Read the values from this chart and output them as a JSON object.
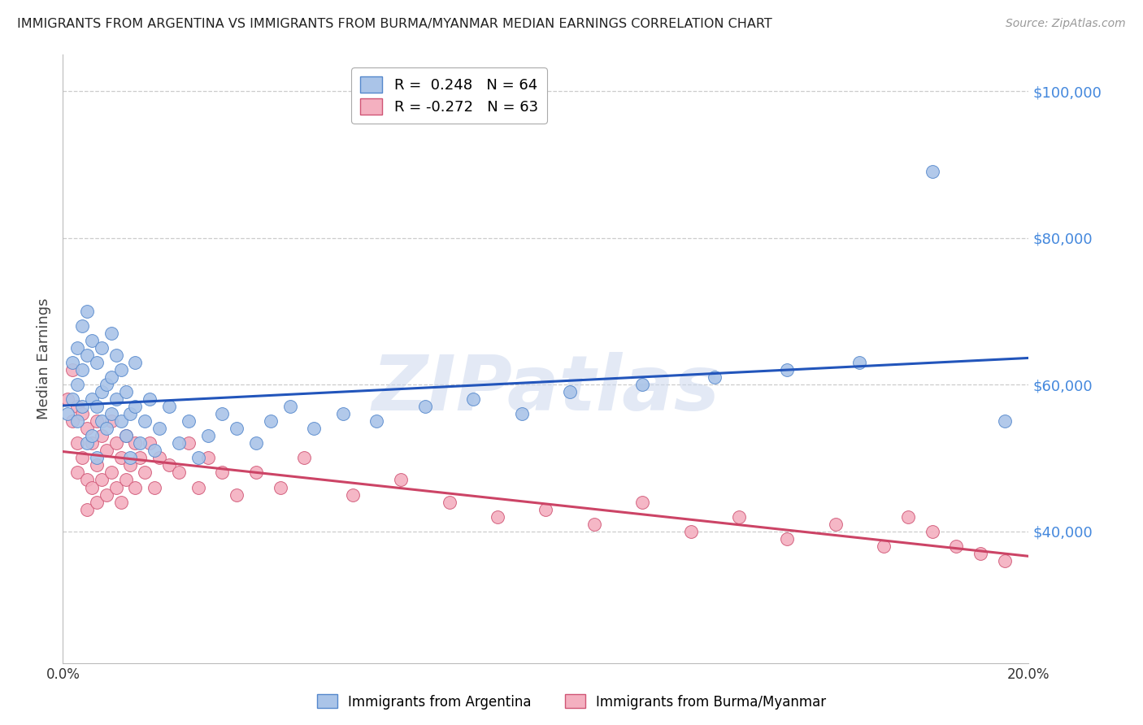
{
  "title": "IMMIGRANTS FROM ARGENTINA VS IMMIGRANTS FROM BURMA/MYANMAR MEDIAN EARNINGS CORRELATION CHART",
  "source": "Source: ZipAtlas.com",
  "ylabel": "Median Earnings",
  "watermark": "ZIPatlas",
  "xlim": [
    0.0,
    0.2
  ],
  "ylim": [
    22000,
    105000
  ],
  "xticks": [
    0.0,
    0.05,
    0.1,
    0.15,
    0.2
  ],
  "xtick_labels": [
    "0.0%",
    "",
    "",
    "",
    "20.0%"
  ],
  "yticks": [
    40000,
    60000,
    80000,
    100000
  ],
  "ytick_labels": [
    "$40,000",
    "$60,000",
    "$80,000",
    "$100,000"
  ],
  "series_argentina": {
    "label": "Immigrants from Argentina",
    "R": 0.248,
    "N": 64,
    "color": "#aac4e8",
    "edge_color": "#5588cc",
    "trend_color": "#2255bb",
    "x": [
      0.001,
      0.002,
      0.002,
      0.003,
      0.003,
      0.003,
      0.004,
      0.004,
      0.004,
      0.005,
      0.005,
      0.005,
      0.006,
      0.006,
      0.006,
      0.007,
      0.007,
      0.007,
      0.008,
      0.008,
      0.008,
      0.009,
      0.009,
      0.01,
      0.01,
      0.01,
      0.011,
      0.011,
      0.012,
      0.012,
      0.013,
      0.013,
      0.014,
      0.014,
      0.015,
      0.015,
      0.016,
      0.017,
      0.018,
      0.019,
      0.02,
      0.022,
      0.024,
      0.026,
      0.028,
      0.03,
      0.033,
      0.036,
      0.04,
      0.043,
      0.047,
      0.052,
      0.058,
      0.065,
      0.075,
      0.085,
      0.095,
      0.105,
      0.12,
      0.135,
      0.15,
      0.165,
      0.18,
      0.195
    ],
    "y": [
      56000,
      63000,
      58000,
      65000,
      60000,
      55000,
      68000,
      62000,
      57000,
      70000,
      64000,
      52000,
      66000,
      58000,
      53000,
      63000,
      57000,
      50000,
      65000,
      59000,
      55000,
      60000,
      54000,
      67000,
      61000,
      56000,
      64000,
      58000,
      62000,
      55000,
      59000,
      53000,
      56000,
      50000,
      63000,
      57000,
      52000,
      55000,
      58000,
      51000,
      54000,
      57000,
      52000,
      55000,
      50000,
      53000,
      56000,
      54000,
      52000,
      55000,
      57000,
      54000,
      56000,
      55000,
      57000,
      58000,
      56000,
      59000,
      60000,
      61000,
      62000,
      63000,
      89000,
      55000
    ]
  },
  "series_burma": {
    "label": "Immigrants from Burma/Myanmar",
    "R": -0.272,
    "N": 63,
    "color": "#f4b0c0",
    "edge_color": "#d05575",
    "trend_color": "#cc4466",
    "x": [
      0.001,
      0.002,
      0.002,
      0.003,
      0.003,
      0.003,
      0.004,
      0.004,
      0.005,
      0.005,
      0.005,
      0.006,
      0.006,
      0.007,
      0.007,
      0.007,
      0.008,
      0.008,
      0.009,
      0.009,
      0.01,
      0.01,
      0.011,
      0.011,
      0.012,
      0.012,
      0.013,
      0.013,
      0.014,
      0.015,
      0.015,
      0.016,
      0.017,
      0.018,
      0.019,
      0.02,
      0.022,
      0.024,
      0.026,
      0.028,
      0.03,
      0.033,
      0.036,
      0.04,
      0.045,
      0.05,
      0.06,
      0.07,
      0.08,
      0.09,
      0.1,
      0.11,
      0.12,
      0.13,
      0.14,
      0.15,
      0.16,
      0.17,
      0.175,
      0.18,
      0.185,
      0.19,
      0.195
    ],
    "y": [
      58000,
      62000,
      55000,
      57000,
      52000,
      48000,
      56000,
      50000,
      54000,
      47000,
      43000,
      52000,
      46000,
      55000,
      49000,
      44000,
      53000,
      47000,
      51000,
      45000,
      55000,
      48000,
      52000,
      46000,
      50000,
      44000,
      53000,
      47000,
      49000,
      52000,
      46000,
      50000,
      48000,
      52000,
      46000,
      50000,
      49000,
      48000,
      52000,
      46000,
      50000,
      48000,
      45000,
      48000,
      46000,
      50000,
      45000,
      47000,
      44000,
      42000,
      43000,
      41000,
      44000,
      40000,
      42000,
      39000,
      41000,
      38000,
      42000,
      40000,
      38000,
      37000,
      36000
    ]
  },
  "legend_box_color": "#ffffff",
  "grid_color": "#cccccc",
  "background_color": "#ffffff",
  "title_color": "#222222",
  "axis_label_color": "#444444",
  "tick_label_color_y": "#4488dd",
  "tick_label_color_x": "#333333",
  "source_color": "#999999"
}
